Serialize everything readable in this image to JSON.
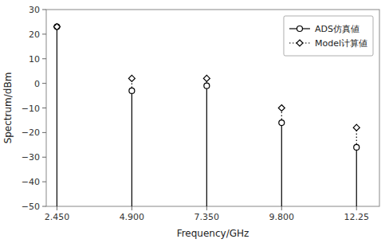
{
  "chart_data": {
    "type": "stem",
    "xlabel": "Frequency/GHz",
    "ylabel": "Spectrum/dBm",
    "x": [
      2.45,
      4.9,
      7.35,
      9.8,
      12.25
    ],
    "series": [
      {
        "name": "ADS仿真値",
        "color": "#000000",
        "values": [
          23,
          -3,
          -1,
          -16,
          -26
        ],
        "marker": "circle",
        "line_style": "solid"
      },
      {
        "name": "Model计算値",
        "color": "#000000",
        "values": [
          23,
          2,
          2,
          -10,
          -18
        ],
        "marker": "diamond",
        "line_style": "dotted"
      }
    ],
    "xlim": [
      2.1,
      13.0
    ],
    "xticks": [
      {
        "value": 2.45,
        "label": "2.450"
      },
      {
        "value": 4.9,
        "label": "4.900"
      },
      {
        "value": 7.35,
        "label": "7.350"
      },
      {
        "value": 9.8,
        "label": "9.800"
      },
      12.25
    ],
    "ylim": [
      -50,
      30
    ],
    "yticks": [
      {
        "value": -50,
        "label": "−50"
      },
      {
        "value": -40,
        "label": "−40"
      },
      {
        "value": -30,
        "label": "−30"
      },
      {
        "value": -20,
        "label": "−20"
      },
      {
        "value": -10,
        "label": "−10"
      },
      0,
      10,
      20,
      30
    ],
    "grid": false,
    "legend": "upper right"
  }
}
